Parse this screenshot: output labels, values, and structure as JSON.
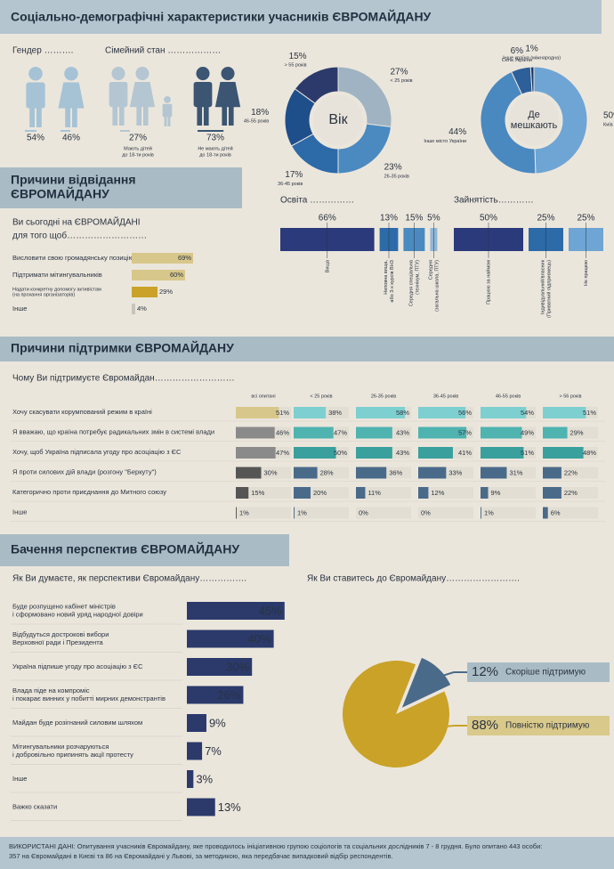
{
  "header": {
    "title": "Соціально-демографічні характеристики учасників ЄВРОМАЙДАНУ"
  },
  "gender": {
    "label": "Гендер ……….",
    "values": [
      54,
      46
    ],
    "value_labels": [
      "54%",
      "46%"
    ]
  },
  "family": {
    "label": "Сімейний стан ………………",
    "values": [
      27,
      73
    ],
    "value_labels": [
      "27%",
      "73%"
    ],
    "captions": [
      [
        "Мають дітей",
        "до 18-ти років"
      ],
      [
        "Не мають дітей",
        "до 18-ти років"
      ]
    ]
  },
  "age": {
    "type": "donut",
    "center": [
      "Вік"
    ],
    "categories": [
      "< 25 років",
      "26-35 років",
      "36-45 років",
      "46-55 років",
      "> 55 років"
    ],
    "values": [
      27,
      23,
      17,
      18,
      15
    ],
    "value_labels": [
      "27%",
      "23%",
      "17%",
      "18%",
      "15%"
    ]
  },
  "residence": {
    "type": "donut",
    "center": [
      "Де",
      "мешкають"
    ],
    "categories": [
      "Київ",
      "Інше місто України",
      "Села України",
      "Інше країна (міжнародна)"
    ],
    "values": [
      50,
      44,
      6,
      1
    ],
    "value_labels": [
      "50%",
      "44%",
      "6%",
      "1%"
    ]
  },
  "reasons": {
    "type": "bar",
    "title": [
      "Причини відвідання",
      "ЄВРОМАЙДАНУ"
    ],
    "question": [
      "Ви сьогодні на ЄВРОМАЙДАНІ",
      "для того щоб………………………"
    ],
    "categories": [
      [
        "Висловити свою громадянську позицію"
      ],
      [
        "Підтримати мітингувальників"
      ],
      [
        "Надати конкретну допомогу активістам",
        "(на прохання організаторів)"
      ],
      [
        "Інше"
      ]
    ],
    "values": [
      69,
      60,
      29,
      4
    ],
    "value_labels": [
      "69%",
      "60%",
      "29%",
      "4%"
    ]
  },
  "education": {
    "type": "bar",
    "label": "Освіта ……………",
    "categories": [
      [
        "Вища"
      ],
      [
        "Неповна вища,",
        "або 3-х курсів ВНЗ"
      ],
      [
        "Середня спеціальна",
        "(технікум, ПТУ)"
      ],
      [
        "Середня",
        "(загальна школа, ПТУ)"
      ]
    ],
    "values": [
      66,
      13,
      15,
      5
    ],
    "value_labels": [
      "66%",
      "13%",
      "15%",
      "5%"
    ]
  },
  "employment": {
    "type": "bar",
    "label": "Зайнятість…………",
    "categories": [
      [
        "Працюю за наймом"
      ],
      [
        "Індивідуальний/власник",
        "(Приватний підприємець)"
      ],
      [
        "Не працюю"
      ]
    ],
    "values": [
      50,
      25,
      25
    ],
    "value_labels": [
      "50%",
      "25%",
      "25%"
    ]
  },
  "support": {
    "type": "bar",
    "title": "Причини підтримки ЄВРОМАЙДАНУ",
    "question": "Чому Ви підтримуєте Євромайдан………………………",
    "columns": [
      "всі опитані",
      "< 25 років",
      "26-35 років",
      "36-45 років",
      "46-55 років",
      "> 56 років"
    ],
    "rows": [
      {
        "label": "Хочу скасувати корумпований режим в країні",
        "values": [
          51,
          38,
          58,
          56,
          54,
          51
        ],
        "value_labels": [
          "51%",
          "38%",
          "58%",
          "56%",
          "54%",
          "51%"
        ]
      },
      {
        "label": "Я вважаю, що країна потребує радикальних змін в системі влади",
        "values": [
          46,
          47,
          43,
          57,
          49,
          29
        ],
        "value_labels": [
          "46%",
          "47%",
          "43%",
          "57%",
          "49%",
          "29%"
        ]
      },
      {
        "label": "Хочу, щоб Україна підписала угоду про асоціацію з ЄС",
        "values": [
          47,
          50,
          43,
          41,
          51,
          48
        ],
        "value_labels": [
          "47%",
          "50%",
          "43%",
          "41%",
          "51%",
          "48%"
        ]
      },
      {
        "label": "Я проти силових дій влади (розгону \"Беркуту\")",
        "values": [
          30,
          28,
          36,
          33,
          31,
          22
        ],
        "value_labels": [
          "30%",
          "28%",
          "36%",
          "33%",
          "31%",
          "22%"
        ]
      },
      {
        "label": "Категорично проти приєднання до Митного союзу",
        "values": [
          15,
          20,
          11,
          12,
          9,
          22
        ],
        "value_labels": [
          "15%",
          "20%",
          "11%",
          "12%",
          "9%",
          "22%"
        ]
      },
      {
        "label": "Інше",
        "values": [
          1,
          1,
          0,
          0,
          1,
          6
        ],
        "value_labels": [
          "1%",
          "1%",
          "0%",
          "0%",
          "1%",
          "6%"
        ]
      }
    ]
  },
  "prospects": {
    "type": "bar",
    "title": "Бачення перспектив ЄВРОМАЙДАНУ",
    "question": "Як Ви думаєте, як перспективи Євромайдану…………….",
    "categories": [
      [
        "Буде розпущено кабінет міністрів",
        "і сформовано новий уряд народної довіри"
      ],
      [
        "Відбудуться дострокові вибори",
        "Верховної ради і Президента"
      ],
      [
        "Україна підпише угоду про асоціацію з ЄС"
      ],
      [
        "Влада піде на компроміс",
        "і покарає винних у побитті мирних демонстрантів"
      ],
      [
        "Майдан буде розігнаний силовим шляхом"
      ],
      [
        "Мітингувальники розчаруються",
        "і добровільно припинять акції протесту"
      ],
      [
        "Інше"
      ],
      [
        "Важко сказати"
      ]
    ],
    "values": [
      45,
      40,
      30,
      26,
      9,
      7,
      3,
      13
    ],
    "value_labels": [
      "45%",
      "40%",
      "30%",
      "26%",
      "9%",
      "7%",
      "3%",
      "13%"
    ]
  },
  "attitude": {
    "type": "pie",
    "question": "Як Ви ставитесь до Євромайдану…………………….",
    "categories": [
      "Скоріше підтримую",
      "Повністю підтримую"
    ],
    "values": [
      12,
      88
    ],
    "value_labels": [
      "12%",
      "88%"
    ]
  },
  "footer": {
    "lines": [
      "ВИКОРИСТАНІ ДАНІ: Опитування учасників Євромайдану, яке проводилось ініціативною групою соціологів та соціальних дослідників 7 - 8 грудня. Було опитано 443 особи:",
      "357 на Євромайдані в Києві та 86 на Євромайдані у Львові, за методикою, яка передбачає випадковий відбір респондентів."
    ]
  }
}
